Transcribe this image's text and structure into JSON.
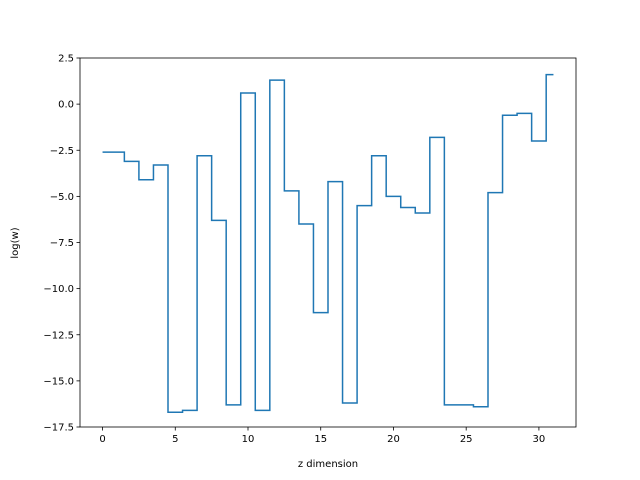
{
  "chart_data": {
    "type": "line",
    "drawstyle": "steps-mid",
    "title": "",
    "xlabel": "z dimension",
    "ylabel": "log(w)",
    "xlim": [
      -1.55,
      32.55
    ],
    "ylim": [
      -17.5,
      2.5
    ],
    "xticks": [
      0,
      5,
      10,
      15,
      20,
      25,
      30
    ],
    "xtick_labels": [
      "0",
      "5",
      "10",
      "15",
      "20",
      "25",
      "30"
    ],
    "yticks": [
      2.5,
      0.0,
      -2.5,
      -5.0,
      -7.5,
      -10.0,
      -12.5,
      -15.0,
      -17.5
    ],
    "ytick_labels": [
      "2.5",
      "0.0",
      "−2.5",
      "−5.0",
      "−7.5",
      "−10.0",
      "−12.5",
      "−15.0",
      "−17.5"
    ],
    "grid": false,
    "legend": "none",
    "series": [
      {
        "color": "#1f77b4",
        "x": [
          0,
          1,
          2,
          3,
          4,
          5,
          6,
          7,
          8,
          9,
          10,
          11,
          12,
          13,
          14,
          15,
          16,
          17,
          18,
          19,
          20,
          21,
          22,
          23,
          24,
          25,
          26,
          27,
          28,
          29,
          30,
          31
        ],
        "values": [
          -2.6,
          -2.6,
          -3.1,
          -4.1,
          -3.3,
          -16.7,
          -16.6,
          -2.8,
          -6.3,
          -16.3,
          0.6,
          -16.6,
          1.3,
          -4.7,
          -6.5,
          -11.3,
          -4.2,
          -16.2,
          -5.5,
          -2.8,
          -5.0,
          -5.6,
          -5.9,
          -1.8,
          -16.3,
          -16.3,
          -16.4,
          -4.8,
          -0.6,
          -0.5,
          -2.0,
          1.6
        ]
      }
    ]
  }
}
